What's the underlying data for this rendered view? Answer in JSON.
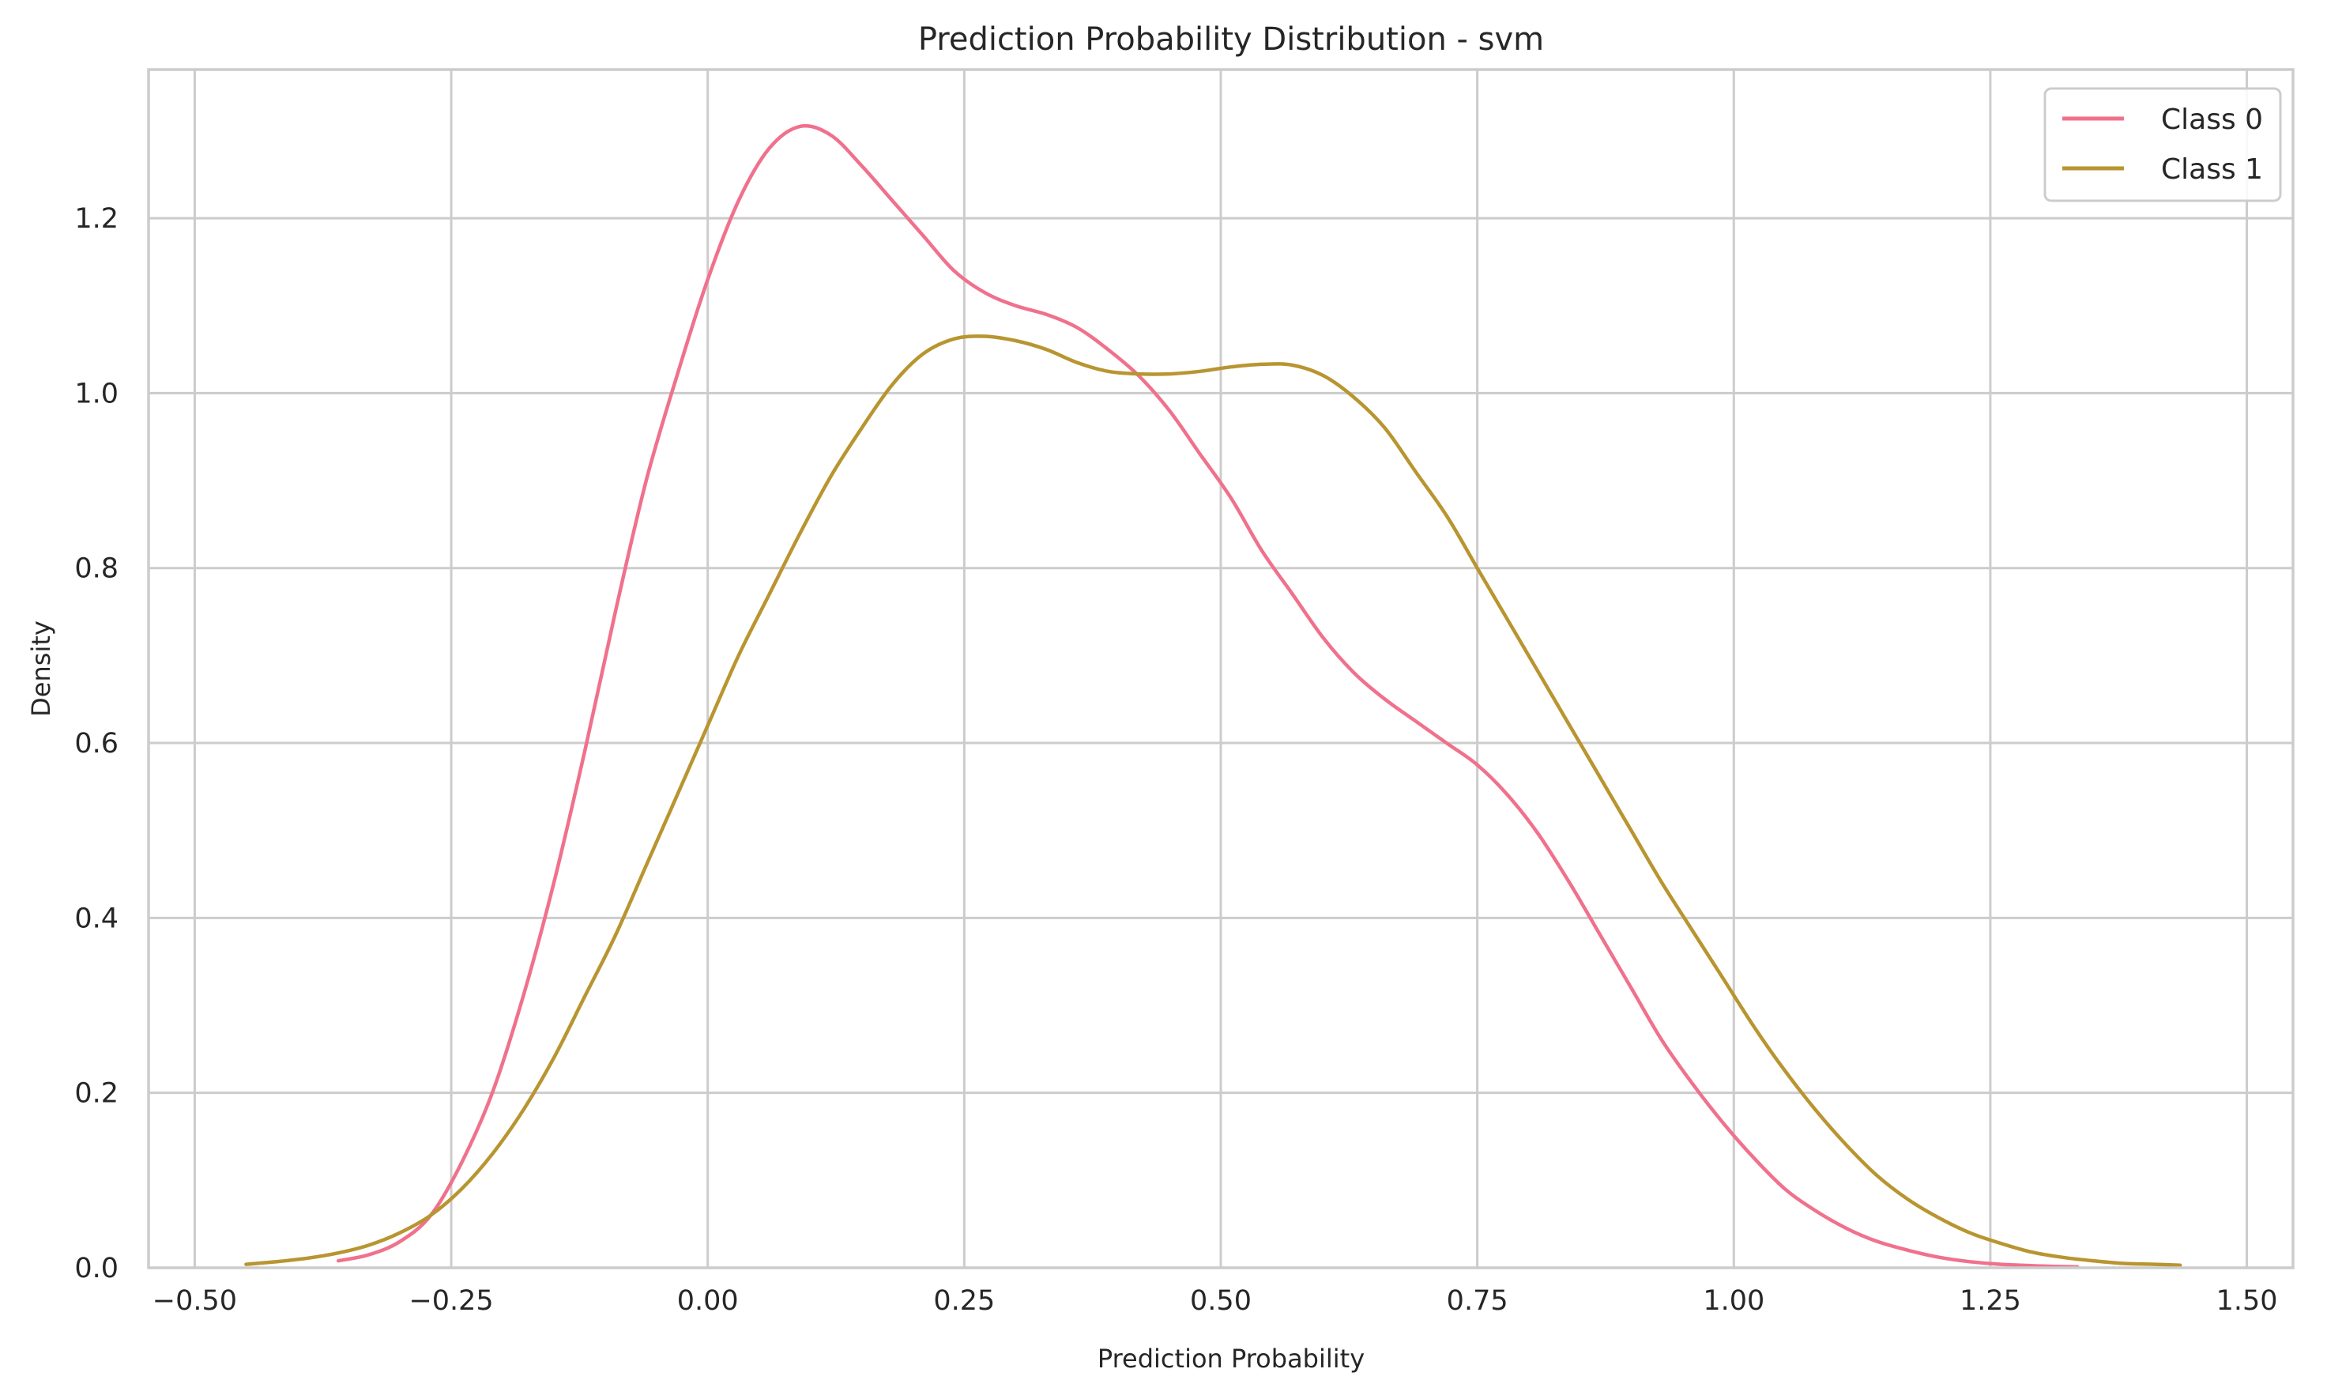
{
  "chart_data": {
    "type": "line",
    "title": "Prediction Probability Distribution - svm",
    "xlabel": "Prediction Probability",
    "ylabel": "Density",
    "xlim": [
      -0.545,
      1.545
    ],
    "ylim": [
      0.0,
      1.37
    ],
    "grid": true,
    "legend_position": "top-right",
    "xticks": [
      -0.5,
      -0.25,
      0.0,
      0.25,
      0.5,
      0.75,
      1.0,
      1.25,
      1.5
    ],
    "xtick_labels": [
      "−0.50",
      "−0.25",
      "0.00",
      "0.25",
      "0.50",
      "0.75",
      "1.00",
      "1.25",
      "1.50"
    ],
    "yticks": [
      0.0,
      0.2,
      0.4,
      0.6,
      0.8,
      1.0,
      1.2
    ],
    "ytick_labels": [
      "0.0",
      "0.2",
      "0.4",
      "0.6",
      "0.8",
      "1.0",
      "1.2"
    ],
    "series": [
      {
        "name": "Class 0",
        "color": "#f0718c",
        "points": [
          [
            -0.36,
            0.008
          ],
          [
            -0.33,
            0.015
          ],
          [
            -0.3,
            0.03
          ],
          [
            -0.27,
            0.06
          ],
          [
            -0.24,
            0.12
          ],
          [
            -0.21,
            0.2
          ],
          [
            -0.18,
            0.31
          ],
          [
            -0.15,
            0.44
          ],
          [
            -0.12,
            0.59
          ],
          [
            -0.09,
            0.75
          ],
          [
            -0.06,
            0.9
          ],
          [
            -0.03,
            1.02
          ],
          [
            0.0,
            1.13
          ],
          [
            0.03,
            1.22
          ],
          [
            0.06,
            1.28
          ],
          [
            0.09,
            1.305
          ],
          [
            0.12,
            1.295
          ],
          [
            0.15,
            1.26
          ],
          [
            0.18,
            1.22
          ],
          [
            0.21,
            1.18
          ],
          [
            0.24,
            1.14
          ],
          [
            0.27,
            1.115
          ],
          [
            0.3,
            1.1
          ],
          [
            0.33,
            1.09
          ],
          [
            0.36,
            1.075
          ],
          [
            0.39,
            1.05
          ],
          [
            0.42,
            1.02
          ],
          [
            0.45,
            0.98
          ],
          [
            0.48,
            0.93
          ],
          [
            0.51,
            0.88
          ],
          [
            0.54,
            0.82
          ],
          [
            0.57,
            0.77
          ],
          [
            0.6,
            0.72
          ],
          [
            0.63,
            0.68
          ],
          [
            0.66,
            0.65
          ],
          [
            0.69,
            0.625
          ],
          [
            0.72,
            0.6
          ],
          [
            0.75,
            0.575
          ],
          [
            0.78,
            0.54
          ],
          [
            0.81,
            0.495
          ],
          [
            0.84,
            0.44
          ],
          [
            0.87,
            0.38
          ],
          [
            0.9,
            0.32
          ],
          [
            0.93,
            0.26
          ],
          [
            0.96,
            0.21
          ],
          [
            0.99,
            0.165
          ],
          [
            1.02,
            0.125
          ],
          [
            1.05,
            0.09
          ],
          [
            1.08,
            0.065
          ],
          [
            1.11,
            0.045
          ],
          [
            1.14,
            0.03
          ],
          [
            1.17,
            0.02
          ],
          [
            1.2,
            0.012
          ],
          [
            1.23,
            0.007
          ],
          [
            1.26,
            0.004
          ],
          [
            1.3,
            0.002
          ],
          [
            1.335,
            0.001
          ]
        ]
      },
      {
        "name": "Class 1",
        "color": "#b89530",
        "points": [
          [
            -0.45,
            0.004
          ],
          [
            -0.42,
            0.007
          ],
          [
            -0.39,
            0.011
          ],
          [
            -0.36,
            0.017
          ],
          [
            -0.33,
            0.026
          ],
          [
            -0.3,
            0.04
          ],
          [
            -0.27,
            0.06
          ],
          [
            -0.24,
            0.09
          ],
          [
            -0.21,
            0.13
          ],
          [
            -0.18,
            0.18
          ],
          [
            -0.15,
            0.24
          ],
          [
            -0.12,
            0.31
          ],
          [
            -0.09,
            0.38
          ],
          [
            -0.06,
            0.46
          ],
          [
            -0.03,
            0.54
          ],
          [
            0.0,
            0.62
          ],
          [
            0.03,
            0.7
          ],
          [
            0.06,
            0.77
          ],
          [
            0.09,
            0.84
          ],
          [
            0.12,
            0.905
          ],
          [
            0.15,
            0.96
          ],
          [
            0.18,
            1.01
          ],
          [
            0.21,
            1.045
          ],
          [
            0.24,
            1.062
          ],
          [
            0.27,
            1.065
          ],
          [
            0.3,
            1.06
          ],
          [
            0.33,
            1.05
          ],
          [
            0.36,
            1.035
          ],
          [
            0.39,
            1.025
          ],
          [
            0.42,
            1.022
          ],
          [
            0.45,
            1.022
          ],
          [
            0.48,
            1.025
          ],
          [
            0.51,
            1.03
          ],
          [
            0.54,
            1.033
          ],
          [
            0.57,
            1.032
          ],
          [
            0.6,
            1.02
          ],
          [
            0.63,
            0.995
          ],
          [
            0.66,
            0.96
          ],
          [
            0.69,
            0.91
          ],
          [
            0.72,
            0.86
          ],
          [
            0.75,
            0.8
          ],
          [
            0.78,
            0.74
          ],
          [
            0.81,
            0.68
          ],
          [
            0.84,
            0.62
          ],
          [
            0.87,
            0.56
          ],
          [
            0.9,
            0.5
          ],
          [
            0.93,
            0.44
          ],
          [
            0.96,
            0.385
          ],
          [
            0.99,
            0.33
          ],
          [
            1.02,
            0.275
          ],
          [
            1.05,
            0.225
          ],
          [
            1.08,
            0.18
          ],
          [
            1.11,
            0.14
          ],
          [
            1.14,
            0.105
          ],
          [
            1.17,
            0.078
          ],
          [
            1.2,
            0.057
          ],
          [
            1.23,
            0.04
          ],
          [
            1.26,
            0.028
          ],
          [
            1.29,
            0.018
          ],
          [
            1.32,
            0.012
          ],
          [
            1.35,
            0.008
          ],
          [
            1.38,
            0.005
          ],
          [
            1.41,
            0.004
          ],
          [
            1.435,
            0.003
          ]
        ]
      }
    ]
  }
}
